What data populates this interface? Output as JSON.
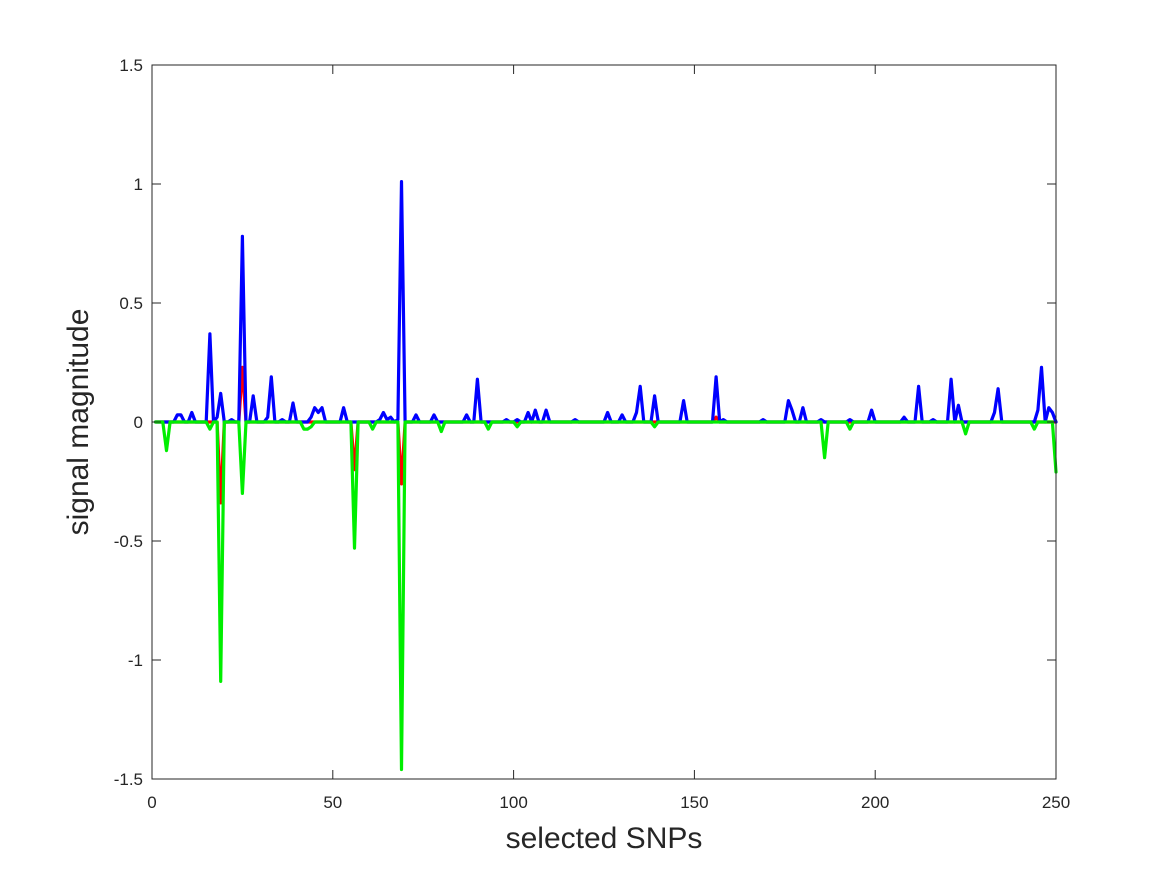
{
  "chart_data": {
    "type": "line",
    "title": "",
    "xlabel": "selected SNPs",
    "ylabel": "signal magnitude",
    "xlim": [
      0,
      250
    ],
    "ylim": [
      -1.5,
      1.5
    ],
    "xticks": [
      0,
      50,
      100,
      150,
      200,
      250
    ],
    "yticks": [
      -1.5,
      -1,
      -0.5,
      0,
      0.5,
      1,
      1.5
    ],
    "xtick_labels": [
      "0",
      "50",
      "100",
      "150",
      "200",
      "250"
    ],
    "ytick_labels": [
      "-1.5",
      "-1",
      "-0.5",
      "0",
      "0.5",
      "1",
      "1.5"
    ],
    "grid": false,
    "legend": "none",
    "series": [
      {
        "color": "#ff0000",
        "points": [
          [
            1,
            0
          ],
          [
            17,
            0
          ],
          [
            18,
            0
          ],
          [
            19,
            -0.34
          ],
          [
            20,
            0
          ],
          [
            24,
            0
          ],
          [
            25,
            0.23
          ],
          [
            26,
            0
          ],
          [
            55,
            0
          ],
          [
            56,
            -0.2
          ],
          [
            57,
            0
          ],
          [
            68,
            0
          ],
          [
            69,
            -0.26
          ],
          [
            70,
            0
          ],
          [
            155,
            0
          ],
          [
            156,
            0.02
          ],
          [
            157,
            0
          ],
          [
            250,
            0
          ]
        ]
      },
      {
        "color": "#0000ff",
        "points": [
          [
            1,
            0
          ],
          [
            6,
            0
          ],
          [
            7,
            0.03
          ],
          [
            8,
            0.03
          ],
          [
            9,
            0
          ],
          [
            10,
            0
          ],
          [
            11,
            0.04
          ],
          [
            12,
            0
          ],
          [
            15,
            0
          ],
          [
            16,
            0.37
          ],
          [
            17,
            0
          ],
          [
            18,
            0.02
          ],
          [
            19,
            0.12
          ],
          [
            20,
            0
          ],
          [
            21,
            0
          ],
          [
            22,
            0.01
          ],
          [
            23,
            0
          ],
          [
            24,
            0
          ],
          [
            25,
            0.78
          ],
          [
            26,
            0
          ],
          [
            27,
            0
          ],
          [
            28,
            0.11
          ],
          [
            29,
            0
          ],
          [
            31,
            0
          ],
          [
            32,
            0.02
          ],
          [
            33,
            0.19
          ],
          [
            34,
            0
          ],
          [
            35,
            0
          ],
          [
            36,
            0.01
          ],
          [
            37,
            0
          ],
          [
            38,
            0
          ],
          [
            39,
            0.08
          ],
          [
            40,
            0
          ],
          [
            43,
            0
          ],
          [
            44,
            0.02
          ],
          [
            45,
            0.06
          ],
          [
            46,
            0.04
          ],
          [
            47,
            0.06
          ],
          [
            48,
            0
          ],
          [
            52,
            0
          ],
          [
            53,
            0.06
          ],
          [
            54,
            0
          ],
          [
            62,
            0
          ],
          [
            63,
            0.01
          ],
          [
            64,
            0.04
          ],
          [
            65,
            0.01
          ],
          [
            66,
            0.02
          ],
          [
            67,
            0
          ],
          [
            68,
            0.01
          ],
          [
            69,
            1.01
          ],
          [
            70,
            0
          ],
          [
            72,
            0
          ],
          [
            73,
            0.03
          ],
          [
            74,
            0
          ],
          [
            77,
            0
          ],
          [
            78,
            0.03
          ],
          [
            79,
            0
          ],
          [
            86,
            0
          ],
          [
            87,
            0.03
          ],
          [
            88,
            0
          ],
          [
            89,
            0
          ],
          [
            90,
            0.18
          ],
          [
            91,
            0
          ],
          [
            97,
            0
          ],
          [
            98,
            0.01
          ],
          [
            99,
            0
          ],
          [
            100,
            0
          ],
          [
            101,
            0.01
          ],
          [
            102,
            0
          ],
          [
            103,
            0
          ],
          [
            104,
            0.04
          ],
          [
            105,
            0
          ],
          [
            106,
            0.05
          ],
          [
            107,
            0
          ],
          [
            108,
            0
          ],
          [
            109,
            0.05
          ],
          [
            110,
            0
          ],
          [
            116,
            0
          ],
          [
            117,
            0.01
          ],
          [
            118,
            0
          ],
          [
            125,
            0
          ],
          [
            126,
            0.04
          ],
          [
            127,
            0
          ],
          [
            129,
            0
          ],
          [
            130,
            0.03
          ],
          [
            131,
            0
          ],
          [
            133,
            0
          ],
          [
            134,
            0.04
          ],
          [
            135,
            0.15
          ],
          [
            136,
            0
          ],
          [
            138,
            0
          ],
          [
            139,
            0.11
          ],
          [
            140,
            0
          ],
          [
            146,
            0
          ],
          [
            147,
            0.09
          ],
          [
            148,
            0
          ],
          [
            155,
            0
          ],
          [
            156,
            0.19
          ],
          [
            157,
            0
          ],
          [
            158,
            0.01
          ],
          [
            159,
            0
          ],
          [
            168,
            0
          ],
          [
            169,
            0.01
          ],
          [
            170,
            0
          ],
          [
            175,
            0
          ],
          [
            176,
            0.09
          ],
          [
            177,
            0.05
          ],
          [
            178,
            0
          ],
          [
            179,
            0
          ],
          [
            180,
            0.06
          ],
          [
            181,
            0
          ],
          [
            184,
            0
          ],
          [
            185,
            0.01
          ],
          [
            186,
            0
          ],
          [
            192,
            0
          ],
          [
            193,
            0.01
          ],
          [
            194,
            0
          ],
          [
            198,
            0
          ],
          [
            199,
            0.05
          ],
          [
            200,
            0
          ],
          [
            207,
            0
          ],
          [
            208,
            0.02
          ],
          [
            209,
            0
          ],
          [
            211,
            0
          ],
          [
            212,
            0.15
          ],
          [
            213,
            0
          ],
          [
            215,
            0
          ],
          [
            216,
            0.01
          ],
          [
            217,
            0
          ],
          [
            220,
            0
          ],
          [
            221,
            0.18
          ],
          [
            222,
            0
          ],
          [
            223,
            0.07
          ],
          [
            224,
            0
          ],
          [
            232,
            0
          ],
          [
            233,
            0.04
          ],
          [
            234,
            0.14
          ],
          [
            235,
            0
          ],
          [
            244,
            0
          ],
          [
            245,
            0.05
          ],
          [
            246,
            0.23
          ],
          [
            247,
            0
          ],
          [
            248,
            0.06
          ],
          [
            249,
            0.04
          ],
          [
            250,
            0
          ]
        ]
      },
      {
        "color": "#00ee00",
        "points": [
          [
            1,
            0
          ],
          [
            3,
            0
          ],
          [
            4,
            -0.12
          ],
          [
            5,
            0
          ],
          [
            15,
            0
          ],
          [
            16,
            -0.03
          ],
          [
            17,
            0
          ],
          [
            18,
            0
          ],
          [
            19,
            -1.09
          ],
          [
            20,
            0
          ],
          [
            24,
            0
          ],
          [
            25,
            -0.3
          ],
          [
            26,
            0
          ],
          [
            41,
            0
          ],
          [
            42,
            -0.03
          ],
          [
            43,
            -0.03
          ],
          [
            44,
            -0.02
          ],
          [
            45,
            0
          ],
          [
            55,
            0
          ],
          [
            56,
            -0.53
          ],
          [
            57,
            0
          ],
          [
            60,
            0
          ],
          [
            61,
            -0.03
          ],
          [
            62,
            0
          ],
          [
            68,
            0
          ],
          [
            69,
            -1.46
          ],
          [
            70,
            0
          ],
          [
            79,
            0
          ],
          [
            80,
            -0.04
          ],
          [
            81,
            0
          ],
          [
            92,
            0
          ],
          [
            93,
            -0.03
          ],
          [
            94,
            0
          ],
          [
            100,
            0
          ],
          [
            101,
            -0.02
          ],
          [
            102,
            0
          ],
          [
            138,
            0
          ],
          [
            139,
            -0.02
          ],
          [
            140,
            0
          ],
          [
            185,
            0
          ],
          [
            186,
            -0.15
          ],
          [
            187,
            0
          ],
          [
            192,
            0
          ],
          [
            193,
            -0.03
          ],
          [
            194,
            0
          ],
          [
            224,
            0
          ],
          [
            225,
            -0.05
          ],
          [
            226,
            0
          ],
          [
            243,
            0
          ],
          [
            244,
            -0.03
          ],
          [
            245,
            0
          ],
          [
            249,
            0
          ],
          [
            250,
            -0.21
          ]
        ]
      }
    ]
  }
}
